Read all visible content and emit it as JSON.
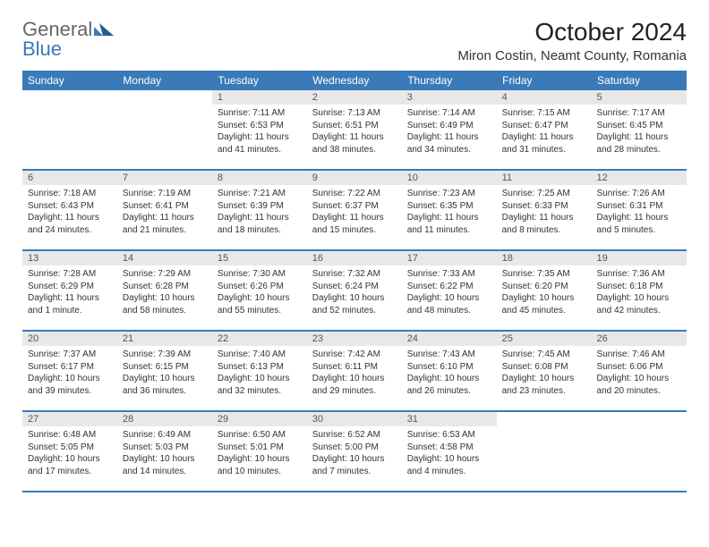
{
  "logo": {
    "general": "General",
    "blue": "Blue"
  },
  "title": "October 2024",
  "location": "Miron Costin, Neamt County, Romania",
  "colors": {
    "header_bg": "#3a7ab8",
    "header_text": "#ffffff",
    "daynum_bg": "#e8e8e8",
    "row_border": "#3a7ab8"
  },
  "weekdays": [
    "Sunday",
    "Monday",
    "Tuesday",
    "Wednesday",
    "Thursday",
    "Friday",
    "Saturday"
  ],
  "weeks": [
    [
      {
        "empty": true
      },
      {
        "empty": true
      },
      {
        "num": "1",
        "sunrise": "Sunrise: 7:11 AM",
        "sunset": "Sunset: 6:53 PM",
        "daylight": "Daylight: 11 hours and 41 minutes."
      },
      {
        "num": "2",
        "sunrise": "Sunrise: 7:13 AM",
        "sunset": "Sunset: 6:51 PM",
        "daylight": "Daylight: 11 hours and 38 minutes."
      },
      {
        "num": "3",
        "sunrise": "Sunrise: 7:14 AM",
        "sunset": "Sunset: 6:49 PM",
        "daylight": "Daylight: 11 hours and 34 minutes."
      },
      {
        "num": "4",
        "sunrise": "Sunrise: 7:15 AM",
        "sunset": "Sunset: 6:47 PM",
        "daylight": "Daylight: 11 hours and 31 minutes."
      },
      {
        "num": "5",
        "sunrise": "Sunrise: 7:17 AM",
        "sunset": "Sunset: 6:45 PM",
        "daylight": "Daylight: 11 hours and 28 minutes."
      }
    ],
    [
      {
        "num": "6",
        "sunrise": "Sunrise: 7:18 AM",
        "sunset": "Sunset: 6:43 PM",
        "daylight": "Daylight: 11 hours and 24 minutes."
      },
      {
        "num": "7",
        "sunrise": "Sunrise: 7:19 AM",
        "sunset": "Sunset: 6:41 PM",
        "daylight": "Daylight: 11 hours and 21 minutes."
      },
      {
        "num": "8",
        "sunrise": "Sunrise: 7:21 AM",
        "sunset": "Sunset: 6:39 PM",
        "daylight": "Daylight: 11 hours and 18 minutes."
      },
      {
        "num": "9",
        "sunrise": "Sunrise: 7:22 AM",
        "sunset": "Sunset: 6:37 PM",
        "daylight": "Daylight: 11 hours and 15 minutes."
      },
      {
        "num": "10",
        "sunrise": "Sunrise: 7:23 AM",
        "sunset": "Sunset: 6:35 PM",
        "daylight": "Daylight: 11 hours and 11 minutes."
      },
      {
        "num": "11",
        "sunrise": "Sunrise: 7:25 AM",
        "sunset": "Sunset: 6:33 PM",
        "daylight": "Daylight: 11 hours and 8 minutes."
      },
      {
        "num": "12",
        "sunrise": "Sunrise: 7:26 AM",
        "sunset": "Sunset: 6:31 PM",
        "daylight": "Daylight: 11 hours and 5 minutes."
      }
    ],
    [
      {
        "num": "13",
        "sunrise": "Sunrise: 7:28 AM",
        "sunset": "Sunset: 6:29 PM",
        "daylight": "Daylight: 11 hours and 1 minute."
      },
      {
        "num": "14",
        "sunrise": "Sunrise: 7:29 AM",
        "sunset": "Sunset: 6:28 PM",
        "daylight": "Daylight: 10 hours and 58 minutes."
      },
      {
        "num": "15",
        "sunrise": "Sunrise: 7:30 AM",
        "sunset": "Sunset: 6:26 PM",
        "daylight": "Daylight: 10 hours and 55 minutes."
      },
      {
        "num": "16",
        "sunrise": "Sunrise: 7:32 AM",
        "sunset": "Sunset: 6:24 PM",
        "daylight": "Daylight: 10 hours and 52 minutes."
      },
      {
        "num": "17",
        "sunrise": "Sunrise: 7:33 AM",
        "sunset": "Sunset: 6:22 PM",
        "daylight": "Daylight: 10 hours and 48 minutes."
      },
      {
        "num": "18",
        "sunrise": "Sunrise: 7:35 AM",
        "sunset": "Sunset: 6:20 PM",
        "daylight": "Daylight: 10 hours and 45 minutes."
      },
      {
        "num": "19",
        "sunrise": "Sunrise: 7:36 AM",
        "sunset": "Sunset: 6:18 PM",
        "daylight": "Daylight: 10 hours and 42 minutes."
      }
    ],
    [
      {
        "num": "20",
        "sunrise": "Sunrise: 7:37 AM",
        "sunset": "Sunset: 6:17 PM",
        "daylight": "Daylight: 10 hours and 39 minutes."
      },
      {
        "num": "21",
        "sunrise": "Sunrise: 7:39 AM",
        "sunset": "Sunset: 6:15 PM",
        "daylight": "Daylight: 10 hours and 36 minutes."
      },
      {
        "num": "22",
        "sunrise": "Sunrise: 7:40 AM",
        "sunset": "Sunset: 6:13 PM",
        "daylight": "Daylight: 10 hours and 32 minutes."
      },
      {
        "num": "23",
        "sunrise": "Sunrise: 7:42 AM",
        "sunset": "Sunset: 6:11 PM",
        "daylight": "Daylight: 10 hours and 29 minutes."
      },
      {
        "num": "24",
        "sunrise": "Sunrise: 7:43 AM",
        "sunset": "Sunset: 6:10 PM",
        "daylight": "Daylight: 10 hours and 26 minutes."
      },
      {
        "num": "25",
        "sunrise": "Sunrise: 7:45 AM",
        "sunset": "Sunset: 6:08 PM",
        "daylight": "Daylight: 10 hours and 23 minutes."
      },
      {
        "num": "26",
        "sunrise": "Sunrise: 7:46 AM",
        "sunset": "Sunset: 6:06 PM",
        "daylight": "Daylight: 10 hours and 20 minutes."
      }
    ],
    [
      {
        "num": "27",
        "sunrise": "Sunrise: 6:48 AM",
        "sunset": "Sunset: 5:05 PM",
        "daylight": "Daylight: 10 hours and 17 minutes."
      },
      {
        "num": "28",
        "sunrise": "Sunrise: 6:49 AM",
        "sunset": "Sunset: 5:03 PM",
        "daylight": "Daylight: 10 hours and 14 minutes."
      },
      {
        "num": "29",
        "sunrise": "Sunrise: 6:50 AM",
        "sunset": "Sunset: 5:01 PM",
        "daylight": "Daylight: 10 hours and 10 minutes."
      },
      {
        "num": "30",
        "sunrise": "Sunrise: 6:52 AM",
        "sunset": "Sunset: 5:00 PM",
        "daylight": "Daylight: 10 hours and 7 minutes."
      },
      {
        "num": "31",
        "sunrise": "Sunrise: 6:53 AM",
        "sunset": "Sunset: 4:58 PM",
        "daylight": "Daylight: 10 hours and 4 minutes."
      },
      {
        "empty": true
      },
      {
        "empty": true
      }
    ]
  ]
}
